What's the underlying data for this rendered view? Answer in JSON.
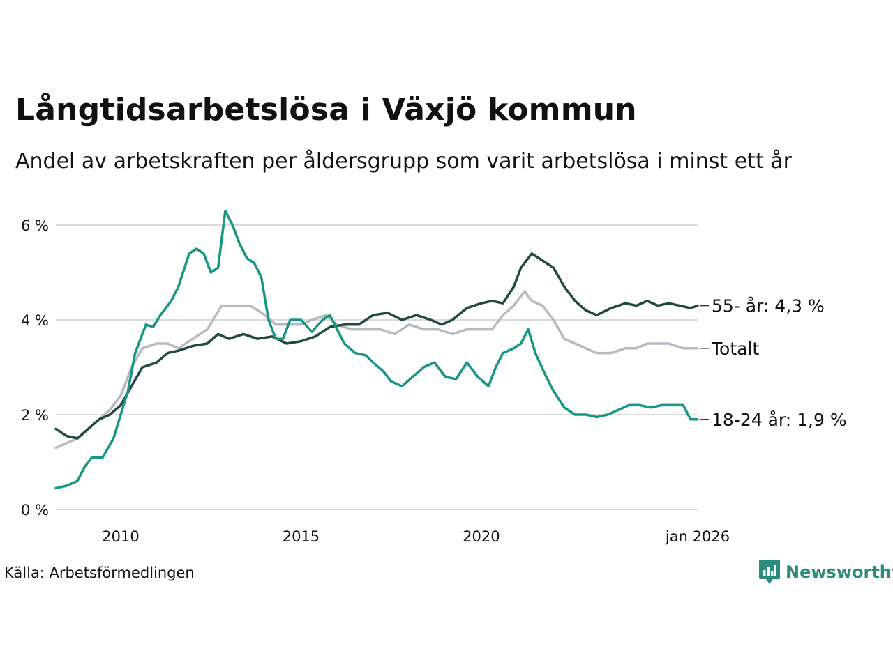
{
  "header": {
    "title": "Långtidsarbetslösa i Växjö kommun",
    "subtitle": "Andel av arbetskraften per åldersgrupp som varit arbetslösa i minst ett år"
  },
  "footer": {
    "source": "Källa: Arbetsförmedlingen",
    "brand": "Newsworthy"
  },
  "colors": {
    "grid": "#dcdcde",
    "age_55": "#1f4a40",
    "total": "#b9b7c2",
    "age_18_24": "#179685",
    "brand": "#2a8c7c"
  },
  "chart_data": {
    "type": "line",
    "title": "Långtidsarbetslösa i Växjö kommun",
    "subtitle": "Andel av arbetskraften per åldersgrupp som varit arbetslösa i minst ett år",
    "xlabel": "",
    "ylabel": "",
    "xlim": [
      2008.2,
      2026.0
    ],
    "ylim": [
      0,
      6
    ],
    "grid": "horizontal",
    "y_ticks": [
      {
        "value": 0,
        "label": "0 %"
      },
      {
        "value": 2,
        "label": "2 %"
      },
      {
        "value": 4,
        "label": "4 %"
      },
      {
        "value": 6,
        "label": "6 %"
      }
    ],
    "x_ticks": [
      {
        "value": 2010,
        "label": "2010"
      },
      {
        "value": 2015,
        "label": "2015"
      },
      {
        "value": 2020,
        "label": "2020"
      },
      {
        "value": 2026,
        "label": "jan 2026"
      }
    ],
    "series": [
      {
        "name": "Totalt",
        "label": "Totalt",
        "color_key": "total",
        "x": [
          2008.2,
          2008.5,
          2008.8,
          2009.1,
          2009.4,
          2009.7,
          2010.0,
          2010.3,
          2010.6,
          2011.0,
          2011.3,
          2011.6,
          2012.0,
          2012.4,
          2012.8,
          2013.2,
          2013.6,
          2014.0,
          2014.3,
          2014.6,
          2015.0,
          2015.3,
          2015.7,
          2016.0,
          2016.4,
          2016.8,
          2017.2,
          2017.6,
          2018.0,
          2018.4,
          2018.8,
          2019.2,
          2019.6,
          2020.0,
          2020.3,
          2020.6,
          2020.9,
          2021.2,
          2021.4,
          2021.7,
          2022.0,
          2022.3,
          2022.6,
          2022.9,
          2023.2,
          2023.6,
          2024.0,
          2024.3,
          2024.6,
          2024.9,
          2025.2,
          2025.6,
          2026.0
        ],
        "values": [
          1.3,
          1.4,
          1.5,
          1.7,
          1.9,
          2.1,
          2.4,
          3.0,
          3.4,
          3.5,
          3.5,
          3.4,
          3.6,
          3.8,
          4.3,
          4.3,
          4.3,
          4.1,
          3.9,
          3.9,
          3.9,
          4.0,
          4.1,
          3.9,
          3.8,
          3.8,
          3.8,
          3.7,
          3.9,
          3.8,
          3.8,
          3.7,
          3.8,
          3.8,
          3.8,
          4.1,
          4.3,
          4.6,
          4.4,
          4.3,
          4.0,
          3.6,
          3.5,
          3.4,
          3.3,
          3.3,
          3.4,
          3.4,
          3.5,
          3.5,
          3.5,
          3.4,
          3.4
        ],
        "end_label": "Totalt"
      },
      {
        "name": "55- år",
        "label": "55- år",
        "color_key": "age_55",
        "x": [
          2008.2,
          2008.5,
          2008.8,
          2009.1,
          2009.4,
          2009.7,
          2010.0,
          2010.3,
          2010.6,
          2011.0,
          2011.3,
          2011.6,
          2012.0,
          2012.4,
          2012.7,
          2013.0,
          2013.4,
          2013.8,
          2014.2,
          2014.6,
          2015.0,
          2015.4,
          2015.8,
          2016.2,
          2016.6,
          2017.0,
          2017.4,
          2017.8,
          2018.2,
          2018.6,
          2018.9,
          2019.2,
          2019.6,
          2020.0,
          2020.3,
          2020.6,
          2020.9,
          2021.1,
          2021.4,
          2021.7,
          2022.0,
          2022.3,
          2022.6,
          2022.9,
          2023.2,
          2023.6,
          2024.0,
          2024.3,
          2024.6,
          2024.9,
          2025.2,
          2025.5,
          2025.8,
          2026.0
        ],
        "values": [
          1.7,
          1.55,
          1.5,
          1.7,
          1.9,
          2.0,
          2.2,
          2.6,
          3.0,
          3.1,
          3.3,
          3.35,
          3.45,
          3.5,
          3.7,
          3.6,
          3.7,
          3.6,
          3.65,
          3.5,
          3.55,
          3.65,
          3.85,
          3.9,
          3.9,
          4.1,
          4.15,
          4.0,
          4.1,
          4.0,
          3.9,
          4.0,
          4.25,
          4.35,
          4.4,
          4.35,
          4.7,
          5.1,
          5.4,
          5.25,
          5.1,
          4.7,
          4.4,
          4.2,
          4.1,
          4.25,
          4.35,
          4.3,
          4.4,
          4.3,
          4.35,
          4.3,
          4.25,
          4.3
        ],
        "end_label": "55- år: 4,3 %"
      },
      {
        "name": "18-24 år",
        "label": "18-24 år",
        "color_key": "age_18_24",
        "x": [
          2008.2,
          2008.5,
          2008.8,
          2009.0,
          2009.2,
          2009.5,
          2009.8,
          2010.0,
          2010.2,
          2010.4,
          2010.7,
          2010.9,
          2011.1,
          2011.4,
          2011.6,
          2011.9,
          2012.1,
          2012.3,
          2012.5,
          2012.7,
          2012.9,
          2013.1,
          2013.3,
          2013.5,
          2013.7,
          2013.9,
          2014.1,
          2014.3,
          2014.5,
          2014.7,
          2015.0,
          2015.3,
          2015.6,
          2015.8,
          2016.0,
          2016.2,
          2016.5,
          2016.8,
          2017.0,
          2017.3,
          2017.5,
          2017.8,
          2018.1,
          2018.4,
          2018.7,
          2019.0,
          2019.3,
          2019.6,
          2019.9,
          2020.2,
          2020.4,
          2020.6,
          2020.9,
          2021.1,
          2021.3,
          2021.5,
          2021.8,
          2022.0,
          2022.3,
          2022.6,
          2022.9,
          2023.2,
          2023.5,
          2023.8,
          2024.1,
          2024.4,
          2024.7,
          2025.0,
          2025.3,
          2025.6,
          2025.8,
          2026.0
        ],
        "values": [
          0.45,
          0.5,
          0.6,
          0.9,
          1.1,
          1.1,
          1.5,
          2.0,
          2.5,
          3.3,
          3.9,
          3.85,
          4.1,
          4.4,
          4.7,
          5.4,
          5.5,
          5.4,
          5.0,
          5.1,
          6.3,
          6.0,
          5.6,
          5.3,
          5.2,
          4.9,
          4.0,
          3.6,
          3.6,
          4.0,
          4.0,
          3.75,
          4.0,
          4.1,
          3.8,
          3.5,
          3.3,
          3.25,
          3.1,
          2.9,
          2.7,
          2.6,
          2.8,
          3.0,
          3.1,
          2.8,
          2.75,
          3.1,
          2.8,
          2.6,
          3.0,
          3.3,
          3.4,
          3.5,
          3.8,
          3.3,
          2.8,
          2.5,
          2.15,
          2.0,
          2.0,
          1.95,
          2.0,
          2.1,
          2.2,
          2.2,
          2.15,
          2.2,
          2.2,
          2.2,
          1.9,
          1.9
        ],
        "end_label": "18-24 år: 1,9 %"
      }
    ]
  }
}
